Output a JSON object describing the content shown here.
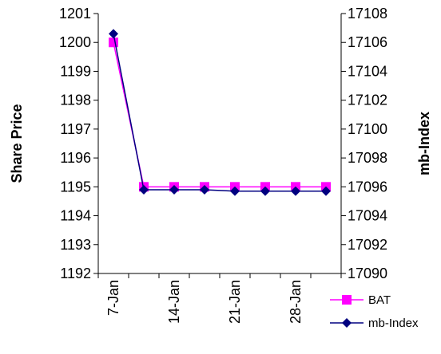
{
  "chart_data": {
    "type": "line",
    "categories": [
      "7-Jan",
      "",
      "14-Jan",
      "",
      "21-Jan",
      "",
      "28-Jan",
      ""
    ],
    "x_tick_labels": [
      "7-Jan",
      "14-Jan",
      "21-Jan",
      "28-Jan"
    ],
    "ylabel": "Share Price",
    "y2label": "mb-Index",
    "ylim": [
      1192,
      1201
    ],
    "y2lim": [
      17090,
      17108
    ],
    "yticks": [
      1192,
      1193,
      1194,
      1195,
      1196,
      1197,
      1198,
      1199,
      1200,
      1201
    ],
    "y2ticks": [
      17090,
      17092,
      17094,
      17096,
      17098,
      17100,
      17102,
      17104,
      17106,
      17108
    ],
    "grid": false,
    "legend_position": "bottom-right",
    "series": [
      {
        "name": "BAT",
        "axis": "left",
        "color": "#ff00ff",
        "marker": "square",
        "values": [
          1200,
          1195,
          1195,
          1195,
          1195,
          1195,
          1195,
          1195
        ]
      },
      {
        "name": "mb-Index",
        "axis": "right",
        "color": "#000080",
        "marker": "diamond",
        "values": [
          17106.6,
          17095.8,
          17095.8,
          17095.8,
          17095.7,
          17095.7,
          17095.7,
          17095.7
        ]
      }
    ]
  }
}
